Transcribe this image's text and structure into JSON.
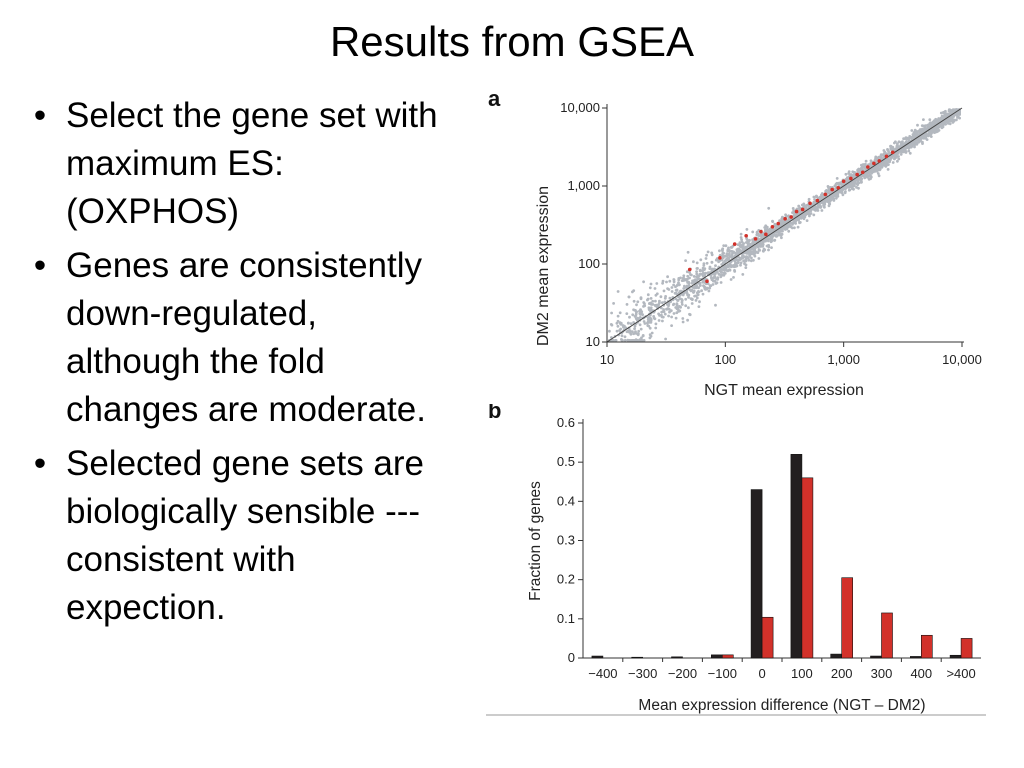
{
  "slide": {
    "title": "Results from GSEA",
    "bullets": [
      "Select the gene set with maximum ES: (OXPHOS)",
      "Genes are consistently down-regulated, although the fold changes are moderate.",
      "Selected gene sets are biologically sensible --- consistent with expection."
    ]
  },
  "colors": {
    "bar_ngt": "#231f20",
    "bar_dm2": "#d2312a",
    "scatter_gray": "#b3b8bf",
    "scatter_red": "#d2312a"
  },
  "chart_data": [
    {
      "panel_label": "a",
      "type": "scatter",
      "xlabel": "NGT mean expression",
      "ylabel": "DM2 mean expression",
      "xscale": "log",
      "yscale": "log",
      "xlim": [
        10,
        10000
      ],
      "ylim": [
        10,
        10000
      ],
      "xticks": [
        10,
        100,
        1000,
        10000
      ],
      "xticklabels": [
        "10",
        "100",
        "1,000",
        "10,000"
      ],
      "yticks": [
        10,
        100,
        1000,
        10000
      ],
      "yticklabels": [
        "10",
        "100",
        "1,000",
        "10,000"
      ],
      "reference_line": "y = x",
      "series": [
        {
          "points": [
            [
              50,
              85
            ],
            [
              70,
              60
            ],
            [
              90,
              120
            ],
            [
              120,
              180
            ],
            [
              150,
              230
            ],
            [
              180,
              210
            ],
            [
              200,
              260
            ],
            [
              220,
              240
            ],
            [
              250,
              300
            ],
            [
              280,
              330
            ],
            [
              320,
              380
            ],
            [
              360,
              400
            ],
            [
              400,
              470
            ],
            [
              450,
              500
            ],
            [
              520,
              600
            ],
            [
              600,
              650
            ],
            [
              700,
              780
            ],
            [
              800,
              900
            ],
            [
              900,
              950
            ],
            [
              1000,
              1150
            ],
            [
              1150,
              1250
            ],
            [
              1300,
              1400
            ],
            [
              1450,
              1500
            ],
            [
              1600,
              1750
            ],
            [
              1800,
              1950
            ],
            [
              2000,
              2100
            ],
            [
              2300,
              2400
            ],
            [
              2600,
              2700
            ]
          ]
        }
      ]
    },
    {
      "panel_label": "b",
      "type": "bar",
      "xlabel": "Mean expression difference (NGT – DM2)",
      "ylabel": "Fraction of genes",
      "ylim": [
        0,
        0.6
      ],
      "yticks": [
        0,
        0.1,
        0.2,
        0.3,
        0.4,
        0.5,
        0.6
      ],
      "yticklabels": [
        "0",
        "0.1",
        "0.2",
        "0.3",
        "0.4",
        "0.5",
        "0.6"
      ],
      "categories": [
        "−400",
        "−300",
        "−200",
        "−100",
        "0",
        "100",
        "200",
        "300",
        "400",
        ">400"
      ],
      "series": [
        {
          "values": [
            0.005,
            0.002,
            0.003,
            0.008,
            0.43,
            0.52,
            0.01,
            0.005,
            0.004,
            0.007
          ]
        },
        {
          "values": [
            0.0,
            0.0,
            0.0,
            0.008,
            0.104,
            0.46,
            0.205,
            0.115,
            0.058,
            0.05
          ]
        }
      ]
    }
  ]
}
